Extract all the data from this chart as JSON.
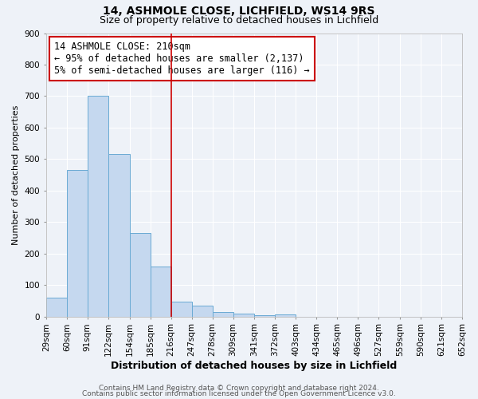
{
  "title": "14, ASHMOLE CLOSE, LICHFIELD, WS14 9RS",
  "subtitle": "Size of property relative to detached houses in Lichfield",
  "xlabel": "Distribution of detached houses by size in Lichfield",
  "ylabel": "Number of detached properties",
  "bin_edges": [
    29,
    60,
    91,
    122,
    154,
    185,
    216,
    247,
    278,
    309,
    341,
    372,
    403,
    434,
    465,
    496,
    527,
    559,
    590,
    621,
    652
  ],
  "bin_labels": [
    "29sqm",
    "60sqm",
    "91sqm",
    "122sqm",
    "154sqm",
    "185sqm",
    "216sqm",
    "247sqm",
    "278sqm",
    "309sqm",
    "341sqm",
    "372sqm",
    "403sqm",
    "434sqm",
    "465sqm",
    "496sqm",
    "527sqm",
    "559sqm",
    "590sqm",
    "621sqm",
    "652sqm"
  ],
  "bar_heights": [
    60,
    465,
    700,
    515,
    265,
    160,
    47,
    35,
    15,
    10,
    5,
    8,
    0,
    0,
    0,
    0,
    0,
    0,
    0,
    0
  ],
  "bar_color": "#c5d8ef",
  "bar_edgecolor": "#6aaad4",
  "red_line_x": 216,
  "ylim": [
    0,
    900
  ],
  "yticks": [
    0,
    100,
    200,
    300,
    400,
    500,
    600,
    700,
    800,
    900
  ],
  "annotation_line1": "14 ASHMOLE CLOSE: 210sqm",
  "annotation_line2": "← 95% of detached houses are smaller (2,137)",
  "annotation_line3": "5% of semi-detached houses are larger (116) →",
  "annotation_box_color": "#ffffff",
  "annotation_box_edgecolor": "#cc0000",
  "footer_line1": "Contains HM Land Registry data © Crown copyright and database right 2024.",
  "footer_line2": "Contains public sector information licensed under the Open Government Licence v3.0.",
  "background_color": "#eef2f8",
  "grid_color": "#ffffff",
  "title_fontsize": 10,
  "subtitle_fontsize": 9,
  "xlabel_fontsize": 9,
  "ylabel_fontsize": 8,
  "tick_fontsize": 7.5,
  "annotation_fontsize": 8.5,
  "footer_fontsize": 6.5
}
